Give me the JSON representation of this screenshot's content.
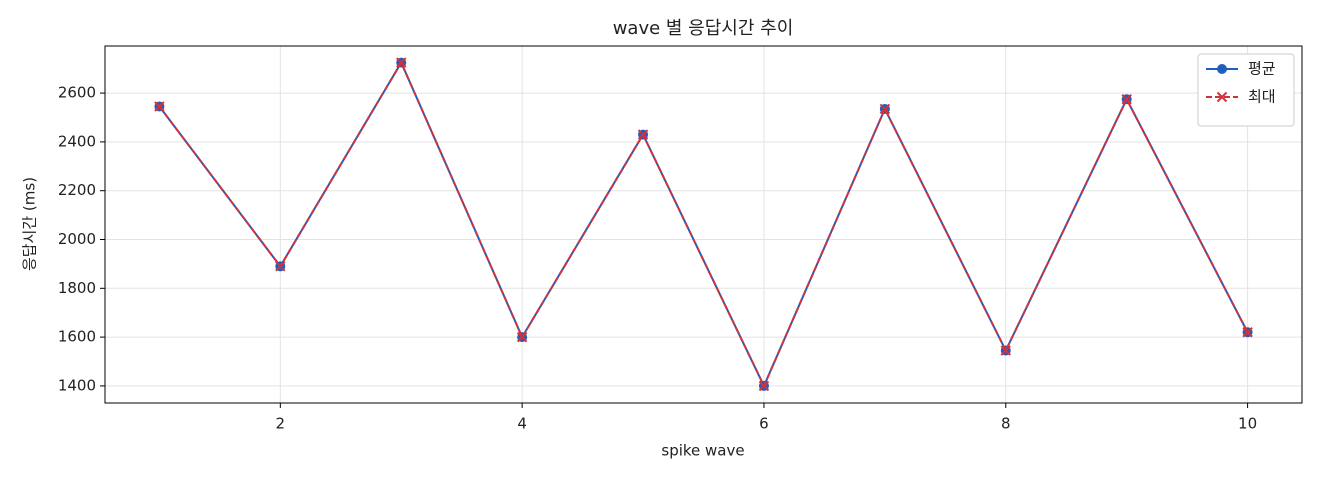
{
  "chart_data": {
    "type": "line",
    "title": "wave 별 응답시간 추이",
    "x_label": "spike wave",
    "y_label": "응답시간 (ms)",
    "x": [
      1,
      2,
      3,
      4,
      5,
      6,
      7,
      8,
      9,
      10
    ],
    "series": [
      {
        "name": "평균",
        "color": "#1f5fbf",
        "marker": "circle",
        "linestyle": "solid",
        "values": [
          2545,
          1890,
          2725,
          1600,
          2430,
          1400,
          2535,
          1545,
          2575,
          1620
        ]
      },
      {
        "name": "최대",
        "color": "#d1333a",
        "marker": "x",
        "linestyle": "dashed",
        "values": [
          2545,
          1890,
          2725,
          1600,
          2430,
          1400,
          2535,
          1545,
          2575,
          1620
        ]
      }
    ],
    "xlim": [
      0.55,
      10.45
    ],
    "xticks": [
      2,
      4,
      6,
      8,
      10
    ],
    "ylim": [
      1330,
      2793
    ],
    "yticks": [
      1400,
      1600,
      1800,
      2000,
      2200,
      2400,
      2600
    ],
    "grid": true,
    "legend": "upper right"
  }
}
